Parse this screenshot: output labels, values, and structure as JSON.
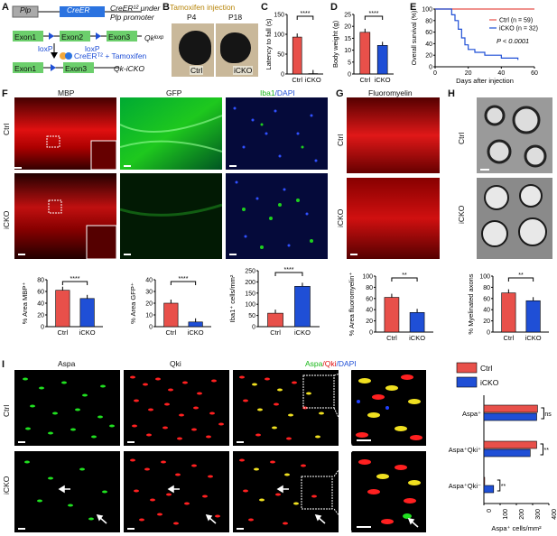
{
  "panels": {
    "A": "A",
    "B": "B",
    "C": "C",
    "D": "D",
    "E": "E",
    "F": "F",
    "G": "G",
    "H": "H",
    "I": "I"
  },
  "a": {
    "plp": "Plp",
    "creert2": "CreER",
    "sup": "T2",
    "under": "CreER¹² under",
    "plp_promoter": "Plp promoter",
    "exon1": "Exon1",
    "exon2": "Exon2",
    "exon3": "Exon3",
    "loxp": "loxP",
    "qk_loxp": "Qkˡᵒˣᵖ",
    "tam": "CreERᵀ² + Tamoxifen",
    "qk_icko": "Qk-iCKO"
  },
  "b": {
    "title": "Tamoxifen injection",
    "p4": "P4",
    "p18": "P18",
    "ctrl": "Ctrl",
    "icko": "iCKO"
  },
  "colors": {
    "ctrl": "#e8504a",
    "icko": "#1f4fd6",
    "mbp": "#e01010",
    "gfp": "#1ec81e",
    "iba1": "#18d018",
    "dapi": "#1020d0",
    "aspa": "#20e020",
    "qki": "#ff2020"
  },
  "chart_data": [
    {
      "type": "bar",
      "panel": "C",
      "ylabel": "Latency to fall (s)",
      "categories": [
        "Ctrl",
        "iCKO"
      ],
      "values": [
        93,
        1
      ],
      "ylim": [
        0,
        150
      ],
      "yticks": [
        0,
        50,
        100,
        150
      ],
      "sig": "****"
    },
    {
      "type": "bar",
      "panel": "D",
      "ylabel": "Body weight (g)",
      "categories": [
        "Ctrl",
        "iCKO"
      ],
      "values": [
        17.5,
        12
      ],
      "ylim": [
        0,
        25
      ],
      "yticks": [
        0,
        5,
        10,
        15,
        20,
        25
      ],
      "sig": "****"
    },
    {
      "type": "line",
      "panel": "E",
      "ylabel": "Overall survival (%)",
      "xlabel": "Days after injection",
      "xlim": [
        0,
        60
      ],
      "ylim": [
        0,
        100
      ],
      "xticks": [
        0,
        20,
        40,
        60
      ],
      "yticks": [
        0,
        20,
        40,
        60,
        80,
        100
      ],
      "series": [
        {
          "name": "Ctrl (n = 59)",
          "values": [
            [
              0,
              100
            ],
            [
              60,
              100
            ]
          ]
        },
        {
          "name": "iCKO (n = 32)",
          "values": [
            [
              0,
              100
            ],
            [
              8,
              100
            ],
            [
              10,
              90
            ],
            [
              12,
              80
            ],
            [
              14,
              65
            ],
            [
              16,
              50
            ],
            [
              18,
              38
            ],
            [
              20,
              30
            ],
            [
              24,
              25
            ],
            [
              30,
              20
            ],
            [
              40,
              15
            ],
            [
              50,
              12
            ]
          ]
        }
      ],
      "annotation": "P < 0.0001"
    },
    {
      "type": "bar",
      "panel": "F1",
      "ylabel": "% Area MBP⁺",
      "categories": [
        "Ctrl",
        "iCKO"
      ],
      "values": [
        62,
        48
      ],
      "ylim": [
        0,
        80
      ],
      "yticks": [
        0,
        20,
        40,
        60,
        80
      ],
      "sig": "****"
    },
    {
      "type": "bar",
      "panel": "F2",
      "ylabel": "% Area GFP⁺",
      "categories": [
        "Ctrl",
        "iCKO"
      ],
      "values": [
        20,
        4
      ],
      "ylim": [
        0,
        40
      ],
      "yticks": [
        0,
        10,
        20,
        30,
        40
      ],
      "sig": "****"
    },
    {
      "type": "bar",
      "panel": "F3",
      "ylabel": "Iba1⁺ cells/mm²",
      "categories": [
        "Ctrl",
        "iCKO"
      ],
      "values": [
        60,
        180
      ],
      "ylim": [
        0,
        250
      ],
      "yticks": [
        0,
        50,
        100,
        150,
        200,
        250
      ],
      "sig": "****"
    },
    {
      "type": "bar",
      "panel": "G",
      "ylabel": "% Area fluoromyelin⁺",
      "categories": [
        "Ctrl",
        "iCKO"
      ],
      "values": [
        62,
        35
      ],
      "ylim": [
        0,
        100
      ],
      "yticks": [
        0,
        20,
        40,
        60,
        80,
        100
      ],
      "sig": "**"
    },
    {
      "type": "bar",
      "panel": "H",
      "ylabel": "% Myelinated axons",
      "categories": [
        "Ctrl",
        "iCKO"
      ],
      "values": [
        70,
        56
      ],
      "ylim": [
        0,
        100
      ],
      "yticks": [
        0,
        20,
        40,
        60,
        80,
        100
      ],
      "sig": "**"
    },
    {
      "type": "bar",
      "panel": "I",
      "orientation": "horizontal",
      "xlabel": "Aspa⁺ cells/mm²",
      "categories": [
        "Aspa⁺",
        "Aspa⁺Qki⁺",
        "Aspa⁺Qki⁻"
      ],
      "series": [
        {
          "name": "Ctrl",
          "values": [
            330,
            325,
            5
          ]
        },
        {
          "name": "iCKO",
          "values": [
            325,
            285,
            60
          ]
        }
      ],
      "xlim": [
        0,
        400
      ],
      "xticks": [
        0,
        100,
        200,
        300,
        400
      ],
      "sig": [
        "ns",
        "**",
        "**"
      ]
    }
  ],
  "f": {
    "mbp": "MBP",
    "gfp": "GFP",
    "iba1": "Iba1",
    "dapi": "/DAPI",
    "ctrl": "Ctrl",
    "icko": "iCKO"
  },
  "g": {
    "title": "Fluoromyelin",
    "ctrl": "Ctrl",
    "icko": "iCKO"
  },
  "h": {
    "ctrl": "Ctrl",
    "icko": "iCKO"
  },
  "i": {
    "aspa": "Aspa",
    "qki": "Qki",
    "merge_aspa": "Aspa",
    "merge_qki": "/Qki",
    "merge_dapi": "/DAPI",
    "ctrl": "Ctrl",
    "icko": "iCKO"
  }
}
